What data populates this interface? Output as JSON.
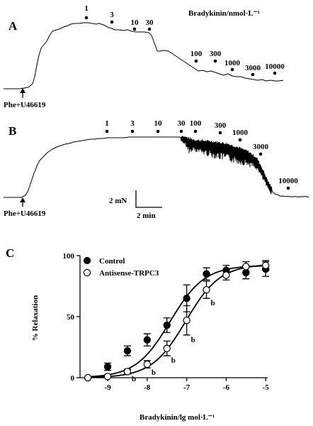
{
  "panel_a": {
    "label": "A",
    "header": "Bradykinin/nmol·L⁻¹",
    "agonist": "Phe+U46619",
    "doses": [
      "1",
      "3",
      "10",
      "30",
      "100",
      "300",
      "1000",
      "3000",
      "10000"
    ]
  },
  "panel_b": {
    "label": "B",
    "agonist": "Phe+U46619",
    "doses": [
      "1",
      "3",
      "10",
      "30",
      "100",
      "300",
      "1000",
      "3000",
      "10000"
    ],
    "scale_force": "2 mN",
    "scale_time": "2 min"
  },
  "panel_c": {
    "label": "C"
  },
  "chart_data": {
    "type": "scatter",
    "title": "",
    "xlabel": "Bradykinin/lg mol·L⁻¹",
    "ylabel": "% Relaxation",
    "xlim": [
      -9.7,
      -4.95
    ],
    "ylim": [
      0,
      100
    ],
    "xticks": [
      -9,
      -8,
      -7,
      -6,
      -5
    ],
    "yticks": [
      0,
      50,
      100
    ],
    "legend_position": "top-left",
    "significance_marker": "b",
    "series": [
      {
        "name": "Control",
        "marker": "filled-circle",
        "color": "#000000",
        "x": [
          -9.5,
          -9,
          -8.5,
          -8,
          -7.5,
          -7,
          -6.5,
          -6,
          -5.5,
          -5
        ],
        "y": [
          0,
          9,
          22,
          31,
          43,
          65,
          85,
          88,
          86,
          89
        ],
        "err": [
          1,
          3,
          4,
          5,
          6,
          11,
          5,
          4,
          5,
          6
        ],
        "fit_ec50_log": -7.42,
        "fit_top": 92
      },
      {
        "name": "Antisense-TRPC3",
        "marker": "open-circle",
        "color": "#000000",
        "x": [
          -9.5,
          -9,
          -8.5,
          -8,
          -7.5,
          -7,
          -6.5,
          -6,
          -5.5,
          -5
        ],
        "y": [
          0,
          1,
          5,
          11,
          24,
          47,
          72,
          84,
          91,
          92
        ],
        "err": [
          1,
          1,
          2,
          3,
          6,
          12,
          7,
          4,
          4,
          4
        ],
        "significant": [
          false,
          false,
          true,
          true,
          true,
          true,
          true,
          false,
          false,
          false
        ],
        "fit_ec50_log": -7.02,
        "fit_top": 93
      }
    ]
  }
}
